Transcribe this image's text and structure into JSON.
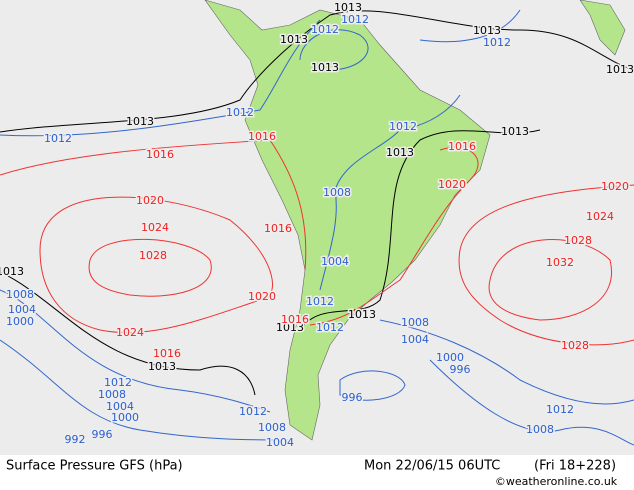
{
  "map": {
    "black_labels": [
      "1013",
      "1013",
      "1013",
      "1013",
      "1013",
      "1013",
      "1013",
      "1013",
      "1013",
      "1013",
      "1013",
      "1013"
    ],
    "blue_labels": [
      "1012",
      "1012",
      "1012",
      "1012",
      "1012",
      "1012",
      "1008",
      "1004",
      "1012",
      "1012",
      "1012",
      "1008",
      "1004",
      "1000",
      "1008",
      "1004",
      "1000",
      "1008",
      "1004",
      "1000",
      "996",
      "996",
      "1012",
      "1008",
      "1004",
      "992",
      "996",
      "1012",
      "1008"
    ],
    "red_labels": [
      "1016",
      "1016",
      "1016",
      "1020",
      "1020",
      "1024",
      "1028",
      "1016",
      "1020",
      "1024",
      "1016",
      "1016",
      "1020",
      "1024",
      "1028",
      "1032",
      "1028"
    ]
  },
  "footer": {
    "title": "Surface Pressure GFS (hPa)",
    "date": "Mon 22/06/15 06UTC",
    "forecast": "(Fri 18+228)",
    "credit": "©weatheronline.co.uk"
  }
}
